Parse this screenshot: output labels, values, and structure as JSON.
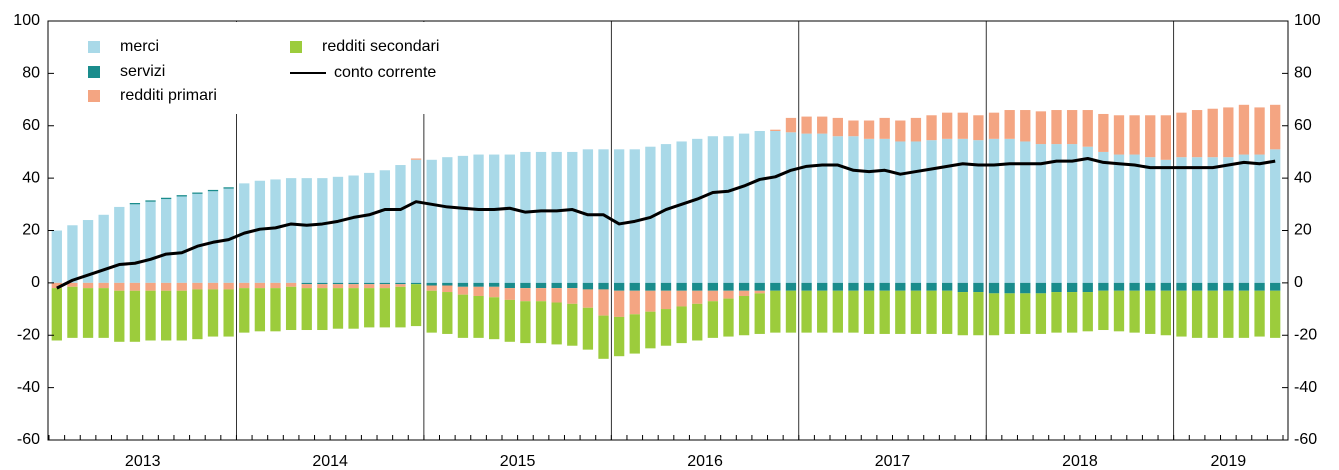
{
  "chart_data": {
    "type": "stacked-bar-line",
    "categories": [
      "2013",
      null,
      null,
      null,
      null,
      null,
      null,
      null,
      null,
      null,
      null,
      null,
      "2014",
      null,
      null,
      null,
      null,
      null,
      null,
      null,
      null,
      null,
      null,
      null,
      "2015",
      null,
      null,
      null,
      null,
      null,
      null,
      null,
      null,
      null,
      null,
      null,
      "2016",
      null,
      null,
      null,
      null,
      null,
      null,
      null,
      null,
      null,
      null,
      null,
      "2017",
      null,
      null,
      null,
      null,
      null,
      null,
      null,
      null,
      null,
      null,
      null,
      "2018",
      null,
      null,
      null,
      null,
      null,
      null,
      null,
      null,
      null,
      null,
      null,
      "2019",
      null,
      null,
      null,
      null,
      null,
      null
    ],
    "series": [
      {
        "name": "merci",
        "type": "bar",
        "color": "#a9d9e8",
        "values": [
          20,
          22,
          24,
          26,
          29,
          30,
          31,
          32,
          33,
          34,
          35,
          36,
          38,
          39,
          39.5,
          40,
          40,
          40,
          40.5,
          41,
          42,
          43,
          45,
          47,
          47,
          48,
          48.5,
          49,
          49,
          49,
          50,
          50,
          50,
          50,
          51,
          51,
          51,
          51,
          52,
          53,
          54,
          55,
          56,
          56,
          57,
          58,
          58,
          57.5,
          57,
          57,
          56,
          56,
          55,
          55,
          54,
          54,
          54.5,
          55,
          55,
          54.5,
          55,
          55,
          54,
          53,
          53,
          53,
          52,
          50,
          49,
          49,
          48,
          47,
          48,
          48,
          48,
          48,
          49,
          49,
          51
        ]
      },
      {
        "name": "servizi",
        "type": "bar",
        "color": "#1a8c8c",
        "values": [
          0,
          0,
          0,
          0,
          0,
          0.5,
          0.5,
          0.5,
          0.5,
          0.5,
          0.5,
          0.5,
          0,
          0,
          0,
          0,
          -0.5,
          -0.5,
          -0.5,
          -0.5,
          -0.5,
          -0.5,
          -0.5,
          -0.5,
          -1,
          -1,
          -1.5,
          -1.5,
          -1.5,
          -2,
          -2,
          -2,
          -2,
          -2,
          -2.5,
          -2.5,
          -3,
          -3,
          -3,
          -3,
          -3,
          -3,
          -3,
          -3,
          -3,
          -3,
          -3,
          -3,
          -3,
          -3,
          -3,
          -3,
          -3,
          -3,
          -3,
          -3,
          -3,
          -3,
          -3.5,
          -3.5,
          -4,
          -4,
          -4,
          -4,
          -3.5,
          -3.5,
          -3.5,
          -3,
          -3,
          -3,
          -3,
          -3,
          -3,
          -3,
          -3,
          -3,
          -3,
          -3,
          -3
        ]
      },
      {
        "name": "redditi primari",
        "type": "bar",
        "color": "#f4a582",
        "values": [
          -2,
          -1.5,
          -2,
          -2,
          -3,
          -3,
          -3,
          -3,
          -3,
          -2.5,
          -2.5,
          -2.5,
          -2,
          -2,
          -2,
          -1.5,
          -1.5,
          -1.5,
          -1.5,
          -1.5,
          -1.5,
          -1.5,
          -1,
          0.5,
          -2,
          -2.5,
          -3,
          -3.5,
          -4,
          -4.5,
          -5,
          -5,
          -5.5,
          -6,
          -7,
          -10,
          -10,
          -9,
          -8,
          -7,
          -6,
          -5,
          -4,
          -3,
          -2,
          -1,
          0.5,
          5.5,
          6.5,
          6.5,
          7,
          6,
          7,
          8,
          8,
          9,
          9.5,
          10,
          10,
          9.5,
          10,
          11,
          12,
          12.5,
          13,
          13,
          14,
          14.5,
          15,
          15,
          16,
          17,
          17,
          18,
          18.5,
          19,
          19,
          18,
          17
        ]
      },
      {
        "name": "redditi secondari",
        "type": "bar",
        "color": "#9ccc3c",
        "values": [
          -20,
          -19.5,
          -19,
          -19,
          -19.5,
          -19.5,
          -19,
          -19,
          -19,
          -19,
          -18,
          -18,
          -17,
          -16.5,
          -16.5,
          -16.5,
          -16,
          -16,
          -15.5,
          -15.5,
          -15,
          -15,
          -15.5,
          -16,
          -16,
          -16,
          -16.5,
          -16,
          -16,
          -16,
          -16,
          -16,
          -16,
          -16,
          -16,
          -16.5,
          -15,
          -15,
          -14,
          -14,
          -14,
          -14,
          -14,
          -14.5,
          -15,
          -15.5,
          -16,
          -16,
          -16,
          -16,
          -16,
          -16,
          -16.5,
          -16.5,
          -16.5,
          -16.5,
          -16.5,
          -16.5,
          -16.5,
          -16.5,
          -16,
          -15.5,
          -15.5,
          -15.5,
          -15.5,
          -15.5,
          -15,
          -15,
          -15.5,
          -16,
          -16.5,
          -17,
          -17.5,
          -18,
          -18,
          -18,
          -18,
          -17.5,
          -18
        ]
      },
      {
        "name": "conto corrente",
        "type": "line",
        "color": "#000000",
        "values": [
          -2,
          1,
          3,
          5,
          7,
          7.5,
          9,
          11,
          11.5,
          14,
          15.5,
          16.5,
          19,
          20.5,
          21,
          22.5,
          22,
          22.5,
          23.5,
          25,
          26,
          28,
          28,
          31,
          30,
          29,
          28.5,
          28,
          28,
          28.5,
          27,
          27.5,
          27.5,
          28,
          26,
          26,
          22.5,
          23.5,
          25,
          28,
          30,
          32,
          34.5,
          35,
          37,
          39.5,
          40.5,
          43,
          44.5,
          45,
          45,
          43,
          42.5,
          43,
          41.5,
          42.5,
          43.5,
          44.5,
          45.5,
          45,
          45,
          45.5,
          45.5,
          45.5,
          46.5,
          46.5,
          47.5,
          46,
          45.5,
          45,
          44,
          44,
          44,
          44,
          44,
          45,
          46,
          45.5,
          46.5
        ]
      }
    ],
    "ylim": [
      -60,
      100
    ],
    "yticks": [
      -60,
      -40,
      -20,
      0,
      20,
      40,
      60,
      80,
      100
    ],
    "y2lim": [
      -60,
      100
    ],
    "y2ticks": [
      -60,
      -40,
      -20,
      0,
      20,
      40,
      60,
      80,
      100
    ],
    "legend": "top-left"
  }
}
